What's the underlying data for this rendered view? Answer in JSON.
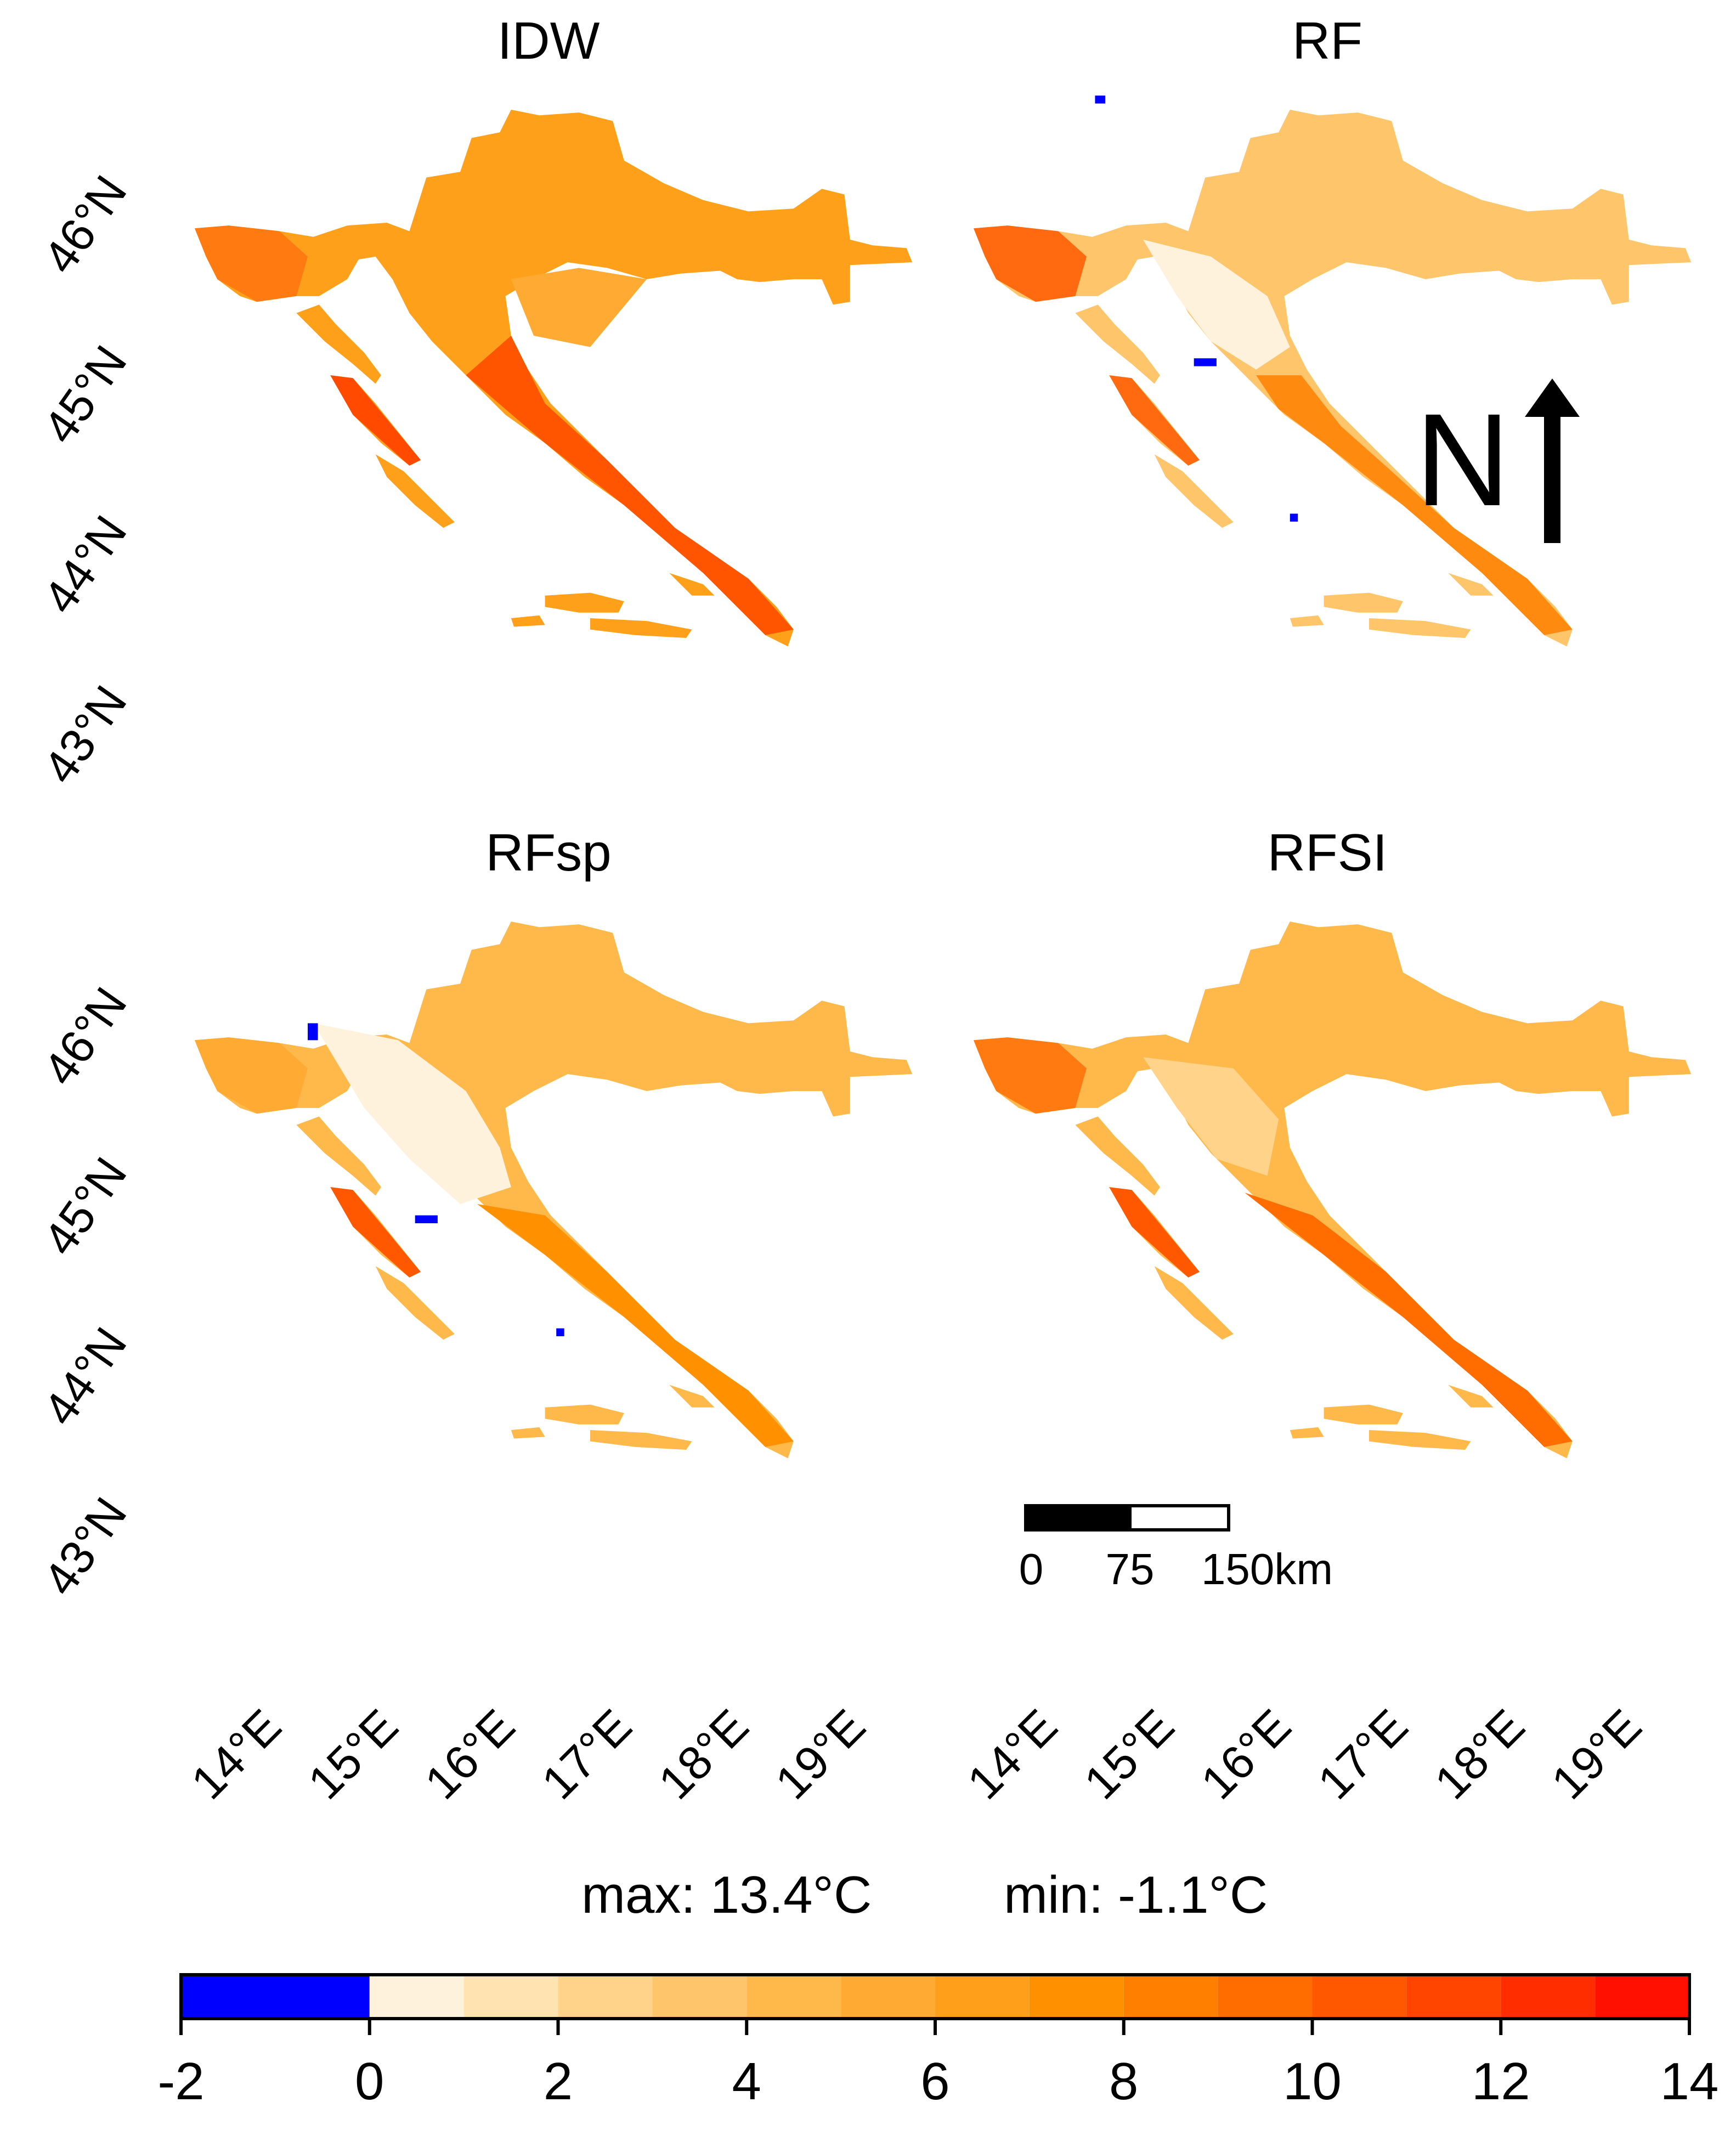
{
  "panels": [
    {
      "title": "IDW"
    },
    {
      "title": "RF"
    },
    {
      "title": "RFsp"
    },
    {
      "title": "RFSI"
    }
  ],
  "latitude_labels": [
    "46°N",
    "45°N",
    "44°N",
    "43°N"
  ],
  "longitude_labels": [
    "14°E",
    "15°E",
    "16°E",
    "17°E",
    "18°E",
    "19°E"
  ],
  "north_arrow": {
    "label": "N"
  },
  "scale_bar": {
    "labels": [
      "0",
      "75",
      "150km"
    ]
  },
  "stats": {
    "max": "max: 13.4°C",
    "min": "min: -1.1°C"
  },
  "legend": {
    "tick_labels": [
      "-2",
      "0",
      "2",
      "4",
      "6",
      "8",
      "10",
      "12",
      "14"
    ],
    "bins": [
      {
        "from": -2,
        "to": 0,
        "color": "#0000ff"
      },
      {
        "from": 0,
        "to": 1,
        "color": "#fff2dc"
      },
      {
        "from": 1,
        "to": 2,
        "color": "#ffe3b0"
      },
      {
        "from": 2,
        "to": 3,
        "color": "#ffd38a"
      },
      {
        "from": 3,
        "to": 4,
        "color": "#ffc56a"
      },
      {
        "from": 4,
        "to": 5,
        "color": "#ffb84a"
      },
      {
        "from": 5,
        "to": 6,
        "color": "#ffab33"
      },
      {
        "from": 6,
        "to": 7,
        "color": "#ff9f1a"
      },
      {
        "from": 7,
        "to": 8,
        "color": "#ff9000"
      },
      {
        "from": 8,
        "to": 9,
        "color": "#ff8000"
      },
      {
        "from": 9,
        "to": 10,
        "color": "#ff6c00"
      },
      {
        "from": 10,
        "to": 11,
        "color": "#ff5800"
      },
      {
        "from": 11,
        "to": 12,
        "color": "#ff4500"
      },
      {
        "from": 12,
        "to": 13,
        "color": "#ff2d00"
      },
      {
        "from": 13,
        "to": 14,
        "color": "#ff1000"
      }
    ]
  },
  "colors": {
    "background": "#ffffff",
    "text": "#000000"
  }
}
